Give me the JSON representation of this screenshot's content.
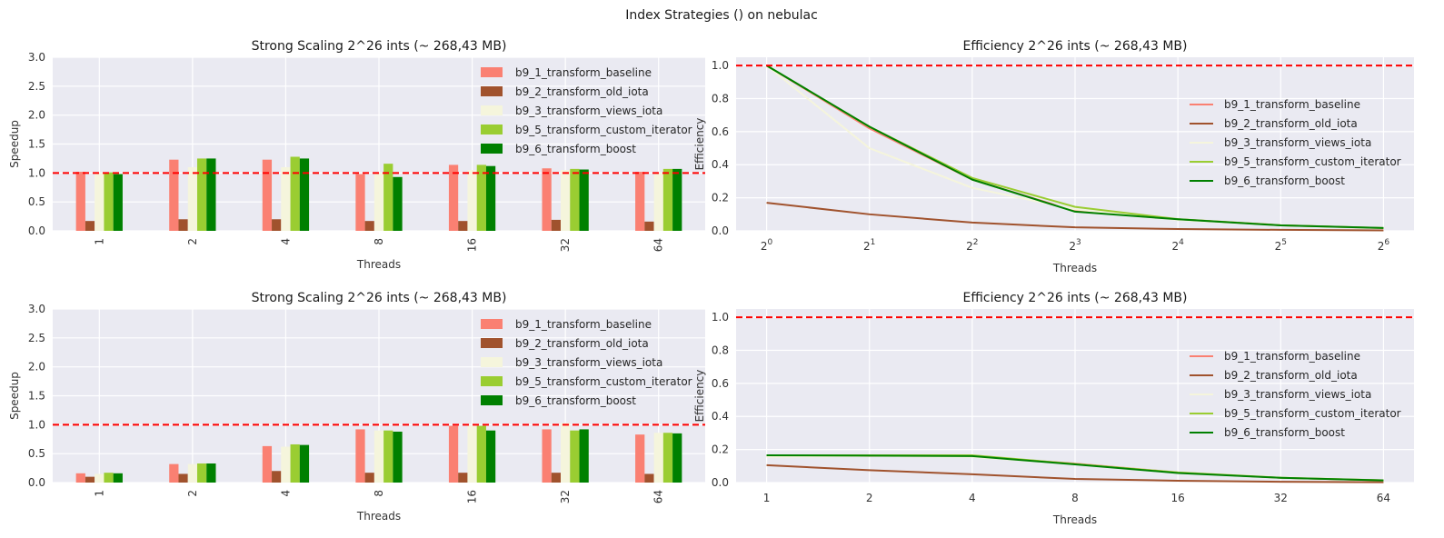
{
  "figure": {
    "suptitle": "Index Strategies () on nebulac"
  },
  "colors": {
    "b9_1_transform_baseline": "#fa8072",
    "b9_2_transform_old_iota": "#a0522d",
    "b9_3_transform_views_iota": "#f5f5dc",
    "b9_5_transform_custom_iterator": "#9acd32",
    "b9_6_transform_boost": "#008000",
    "reference_line": "#ff0000",
    "axes_background": "#eaeaf2",
    "grid": "#ffffff"
  },
  "chart_data": [
    {
      "type": "bar",
      "title": "Strong Scaling 2^26 ints (~ 268,43 MB)",
      "xlabel": "Threads",
      "ylabel": "Speedup",
      "categories": [
        "1",
        "2",
        "4",
        "8",
        "16",
        "32",
        "64"
      ],
      "ylim": [
        0,
        3.0
      ],
      "yticks": [
        "0.0",
        "0.5",
        "1.0",
        "1.5",
        "2.0",
        "2.5",
        "3.0"
      ],
      "reference_line": 1.0,
      "legend_position": "upper-right",
      "series": [
        {
          "name": "b9_1_transform_baseline",
          "values": [
            1.02,
            1.23,
            1.23,
            0.98,
            1.14,
            1.08,
            1.02
          ]
        },
        {
          "name": "b9_2_transform_old_iota",
          "values": [
            0.17,
            0.2,
            0.2,
            0.17,
            0.17,
            0.19,
            0.16
          ]
        },
        {
          "name": "b9_3_transform_views_iota",
          "values": [
            1.0,
            1.1,
            1.1,
            1.0,
            1.05,
            1.05,
            1.0
          ]
        },
        {
          "name": "b9_5_transform_custom_iterator",
          "values": [
            1.01,
            1.25,
            1.28,
            1.16,
            1.14,
            1.07,
            1.07
          ]
        },
        {
          "name": "b9_6_transform_boost",
          "values": [
            0.98,
            1.25,
            1.25,
            0.93,
            1.12,
            1.06,
            1.07
          ]
        }
      ]
    },
    {
      "type": "line",
      "title": "Efficiency 2^26 ints (~ 268,43 MB)",
      "xlabel": "Threads",
      "ylabel": "Efficiency",
      "x": [
        1,
        2,
        4,
        8,
        16,
        32,
        64
      ],
      "xscale": "log2",
      "xticks": [
        {
          "base": "2",
          "exp": "0"
        },
        {
          "base": "2",
          "exp": "1"
        },
        {
          "base": "2",
          "exp": "2"
        },
        {
          "base": "2",
          "exp": "3"
        },
        {
          "base": "2",
          "exp": "4"
        },
        {
          "base": "2",
          "exp": "5"
        },
        {
          "base": "2",
          "exp": "6"
        }
      ],
      "ylim": [
        0,
        1.05
      ],
      "yticks": [
        "0.0",
        "0.2",
        "0.4",
        "0.6",
        "0.8",
        "1.0"
      ],
      "reference_line": 1.0,
      "legend_position": "center-right",
      "series": [
        {
          "name": "b9_1_transform_baseline",
          "values": [
            1.0,
            0.62,
            0.31,
            0.12,
            0.07,
            0.034,
            0.016
          ]
        },
        {
          "name": "b9_2_transform_old_iota",
          "values": [
            0.17,
            0.1,
            0.05,
            0.021,
            0.011,
            0.006,
            0.003
          ]
        },
        {
          "name": "b9_3_transform_views_iota",
          "values": [
            1.0,
            0.5,
            0.26,
            0.13,
            0.066,
            0.033,
            0.016
          ]
        },
        {
          "name": "b9_5_transform_custom_iterator",
          "values": [
            1.0,
            0.63,
            0.32,
            0.145,
            0.071,
            0.034,
            0.017
          ]
        },
        {
          "name": "b9_6_transform_boost",
          "values": [
            1.0,
            0.63,
            0.31,
            0.116,
            0.07,
            0.033,
            0.017
          ]
        }
      ]
    },
    {
      "type": "bar",
      "title": "Strong Scaling 2^26 ints (~ 268,43 MB)",
      "xlabel": "Threads",
      "ylabel": "Speedup",
      "categories": [
        "1",
        "2",
        "4",
        "8",
        "16",
        "32",
        "64"
      ],
      "ylim": [
        0,
        3.0
      ],
      "yticks": [
        "0.0",
        "0.5",
        "1.0",
        "1.5",
        "2.0",
        "2.5",
        "3.0"
      ],
      "reference_line": 1.0,
      "legend_position": "upper-right",
      "series": [
        {
          "name": "b9_1_transform_baseline",
          "values": [
            0.16,
            0.32,
            0.63,
            0.92,
            0.98,
            0.92,
            0.83
          ]
        },
        {
          "name": "b9_2_transform_old_iota",
          "values": [
            0.1,
            0.15,
            0.2,
            0.17,
            0.17,
            0.17,
            0.15
          ]
        },
        {
          "name": "b9_3_transform_views_iota",
          "values": [
            0.15,
            0.32,
            0.62,
            0.9,
            0.98,
            1.03,
            0.86
          ]
        },
        {
          "name": "b9_5_transform_custom_iterator",
          "values": [
            0.17,
            0.33,
            0.66,
            0.9,
            0.98,
            0.9,
            0.86
          ]
        },
        {
          "name": "b9_6_transform_boost",
          "values": [
            0.16,
            0.33,
            0.65,
            0.88,
            0.9,
            0.92,
            0.85
          ]
        }
      ]
    },
    {
      "type": "line",
      "title": "Efficiency 2^26 ints (~ 268,43 MB)",
      "xlabel": "Threads",
      "ylabel": "Efficiency",
      "x": [
        1,
        2,
        4,
        8,
        16,
        32,
        64
      ],
      "xscale": "log2",
      "xticks": [
        {
          "base": "1",
          "exp": ""
        },
        {
          "base": "2",
          "exp": ""
        },
        {
          "base": "4",
          "exp": ""
        },
        {
          "base": "8",
          "exp": ""
        },
        {
          "base": "16",
          "exp": ""
        },
        {
          "base": "32",
          "exp": ""
        },
        {
          "base": "64",
          "exp": ""
        }
      ],
      "ylim": [
        0,
        1.05
      ],
      "yticks": [
        "0.0",
        "0.2",
        "0.4",
        "0.6",
        "0.8",
        "1.0"
      ],
      "reference_line": 1.0,
      "legend_position": "center-right",
      "series": [
        {
          "name": "b9_1_transform_baseline",
          "values": [
            0.16,
            0.16,
            0.158,
            0.115,
            0.061,
            0.029,
            0.013
          ]
        },
        {
          "name": "b9_2_transform_old_iota",
          "values": [
            0.105,
            0.075,
            0.05,
            0.022,
            0.011,
            0.005,
            0.002
          ]
        },
        {
          "name": "b9_3_transform_views_iota",
          "values": [
            0.155,
            0.16,
            0.155,
            0.112,
            0.061,
            0.032,
            0.013
          ]
        },
        {
          "name": "b9_5_transform_custom_iterator",
          "values": [
            0.165,
            0.165,
            0.165,
            0.112,
            0.061,
            0.029,
            0.014
          ]
        },
        {
          "name": "b9_6_transform_boost",
          "values": [
            0.165,
            0.163,
            0.16,
            0.11,
            0.058,
            0.029,
            0.013
          ]
        }
      ]
    }
  ]
}
